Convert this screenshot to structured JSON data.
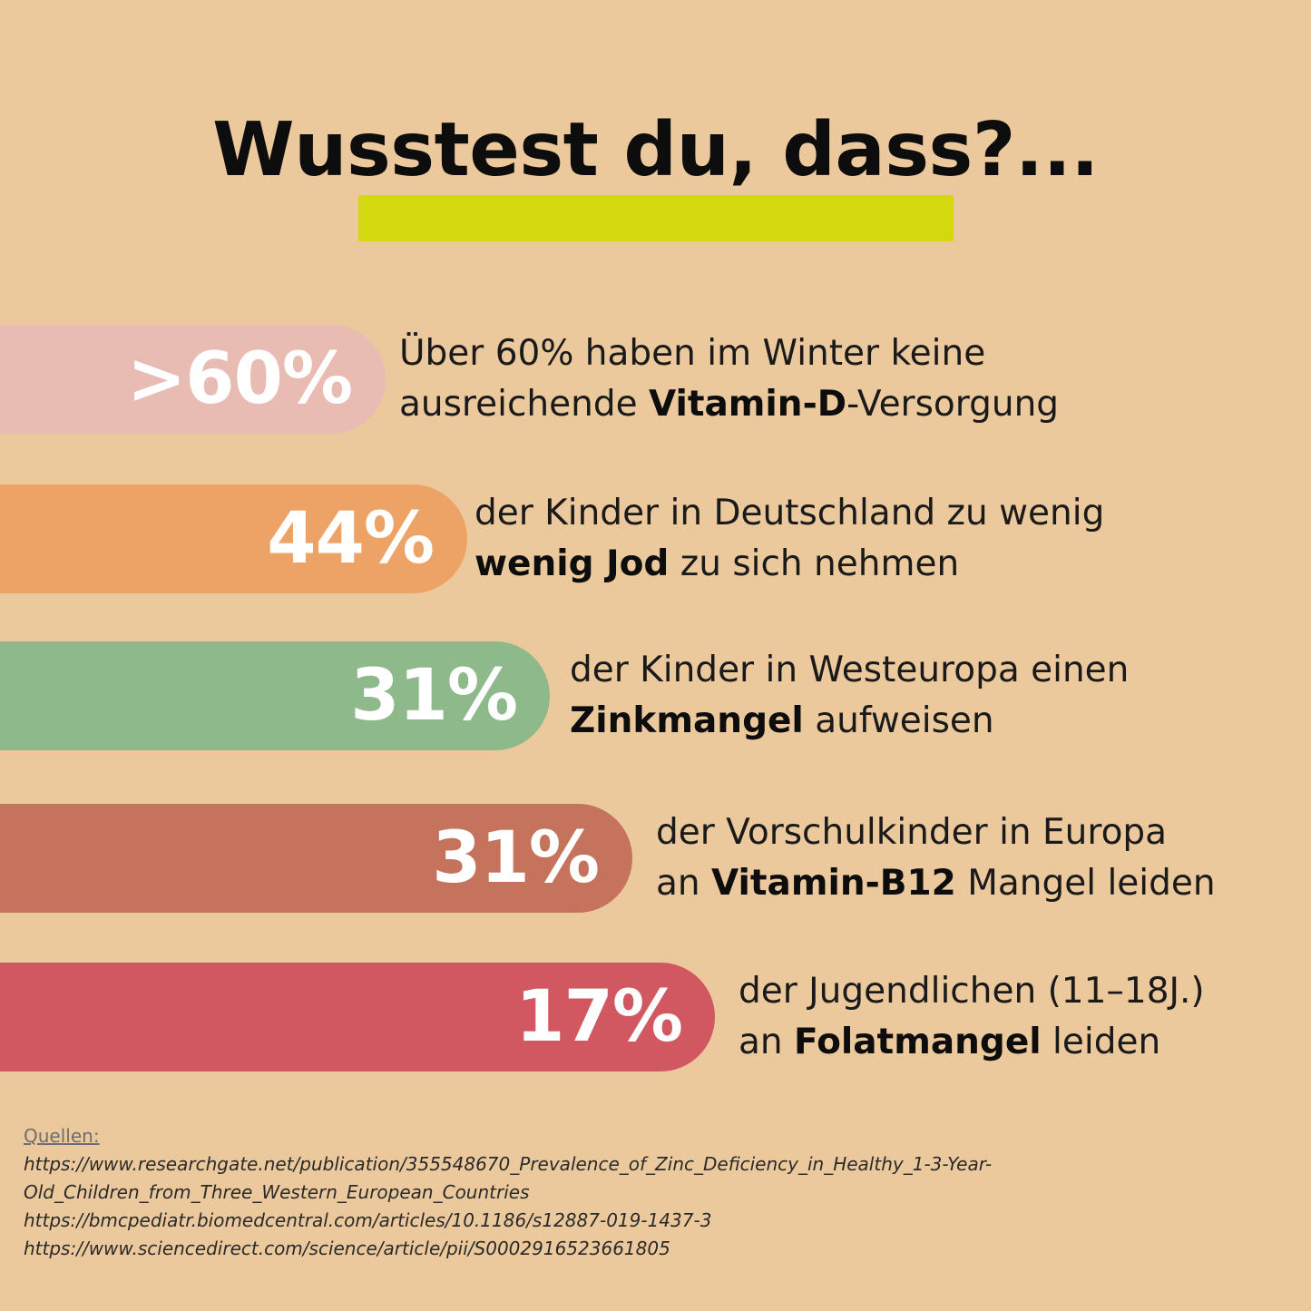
{
  "title": "Wusstest du, dass?...",
  "colors": {
    "background": "#ecc99d",
    "underline": "#d4d90f",
    "pill_1": "#e8bcb2",
    "pill_2": "#eea366",
    "pill_3": "#8eb98a",
    "pill_4": "#c5735d",
    "pill_5": "#d15861"
  },
  "stats": [
    {
      "value": ">60%",
      "line1_plain": "Über 60% haben im Winter keine",
      "line2_pre": "ausreichende ",
      "line2_bold": "Vitamin-D",
      "line2_post": "-Versorgung"
    },
    {
      "value": "44%",
      "line1_plain": "der Kinder in Deutschland zu wenig",
      "line2_pre": "",
      "line2_bold": "wenig Jod",
      "line2_post": " zu sich nehmen"
    },
    {
      "value": "31%",
      "line1_plain": "der Kinder in Westeuropa einen",
      "line2_pre": "",
      "line2_bold": "Zinkmangel",
      "line2_post": " aufweisen"
    },
    {
      "value": "31%",
      "line1_plain": "der Vorschulkinder in Europa",
      "line2_pre": "an ",
      "line2_bold": "Vitamin-B12",
      "line2_post": " Mangel leiden"
    },
    {
      "value": "17%",
      "line1_plain": "der Jugendlichen (11–18J.)",
      "line2_pre": "an ",
      "line2_bold": "Folatmangel",
      "line2_post": " leiden"
    }
  ],
  "sources": {
    "heading": "Quellen:",
    "links": [
      "https://www.researchgate.net/publication/355548670_Prevalence_of_Zinc_Deficiency_in_Healthy_1-3-Year-",
      "Old_Children_from_Three_Western_European_Countries",
      "https://bmcpediatr.biomedcentral.com/articles/10.1186/s12887-019-1437-3",
      "https://www.sciencedirect.com/science/article/pii/S0002916523661805"
    ]
  }
}
